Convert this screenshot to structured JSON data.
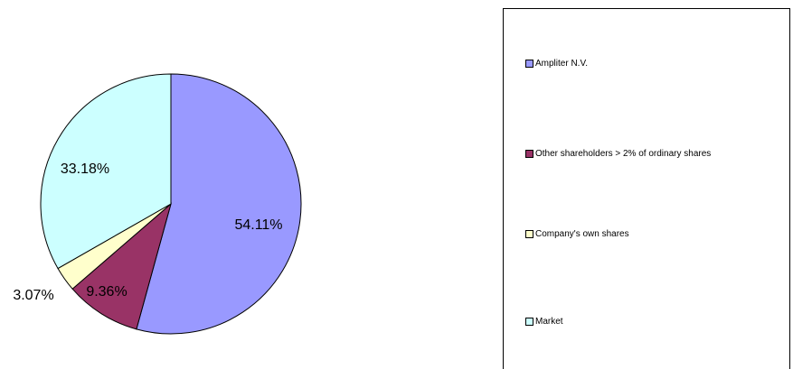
{
  "chart_data": {
    "type": "pie",
    "title": "",
    "slices": [
      {
        "name": "Ampliter N.V.",
        "value": 54.11,
        "label": "54.11%",
        "color": "#9999ff"
      },
      {
        "name": "Other shareholders  > 2% of ordinary shares",
        "value": 9.36,
        "label": "9.36%",
        "color": "#993366"
      },
      {
        "name": "Company's own shares",
        "value": 3.07,
        "label": "3.07%",
        "color": "#ffffcc"
      },
      {
        "name": "Market",
        "value": 33.18,
        "label": "33.18%",
        "color": "#ccffff"
      }
    ],
    "legend_position": "right",
    "start": "top",
    "direction": "clockwise"
  }
}
